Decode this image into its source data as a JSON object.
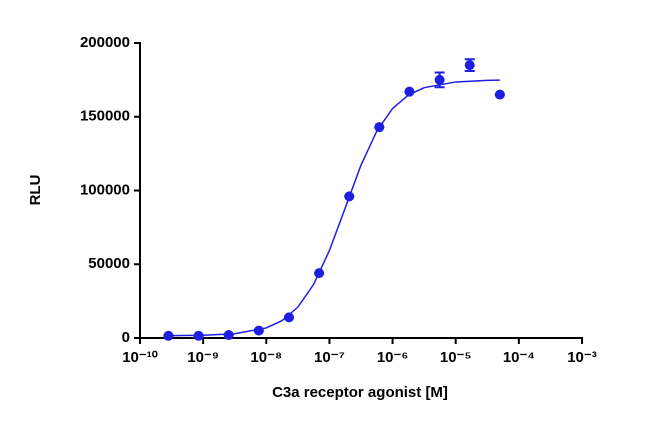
{
  "chart_data": {
    "type": "scatter",
    "xlabel": "C3a receptor agonist [M]",
    "ylabel": "RLU",
    "xscale": "log",
    "xlim": [
      1e-10,
      0.001
    ],
    "ylim": [
      0,
      200000
    ],
    "xticks": [
      {
        "value": 1e-10,
        "label": "10⁻¹⁰"
      },
      {
        "value": 1e-09,
        "label": "10⁻⁹"
      },
      {
        "value": 1e-08,
        "label": "10⁻⁸"
      },
      {
        "value": 1e-07,
        "label": "10⁻⁷"
      },
      {
        "value": 1e-06,
        "label": "10⁻⁶"
      },
      {
        "value": 1e-05,
        "label": "10⁻⁵"
      },
      {
        "value": 0.0001,
        "label": "10⁻⁴"
      },
      {
        "value": 0.001,
        "label": "10⁻³"
      }
    ],
    "yticks": [
      0,
      50000,
      100000,
      150000,
      200000
    ],
    "points": {
      "color": "#1f1fe0",
      "x": [
        2.82e-10,
        8.47e-10,
        2.54e-09,
        7.62e-09,
        2.29e-08,
        6.86e-08,
        2.06e-07,
        6.17e-07,
        1.85e-06,
        5.56e-06,
        1.667e-05,
        5e-05
      ],
      "y": [
        1500,
        1500,
        2000,
        5000,
        14000,
        44000,
        96000,
        143000,
        167000,
        175000,
        185000,
        165000
      ],
      "errors": [
        0,
        0,
        0,
        0,
        0,
        0,
        0,
        0,
        0,
        5000,
        4000,
        0
      ]
    },
    "curve": {
      "color": "#1f1fe0",
      "x": [
        3.16e-10,
        1e-09,
        3.16e-09,
        1e-08,
        1.78e-08,
        3.16e-08,
        5.62e-08,
        1e-07,
        1.78e-07,
        3.16e-07,
        5.62e-07,
        1e-06,
        1.78e-06,
        3.16e-06,
        1e-05,
        3.16e-05,
        5e-05
      ],
      "y": [
        1590,
        1850,
        2870,
        6830,
        11800,
        20900,
        36340,
        59330,
        88250,
        117170,
        140200,
        155600,
        164700,
        169700,
        173600,
        174650,
        174800
      ]
    }
  }
}
